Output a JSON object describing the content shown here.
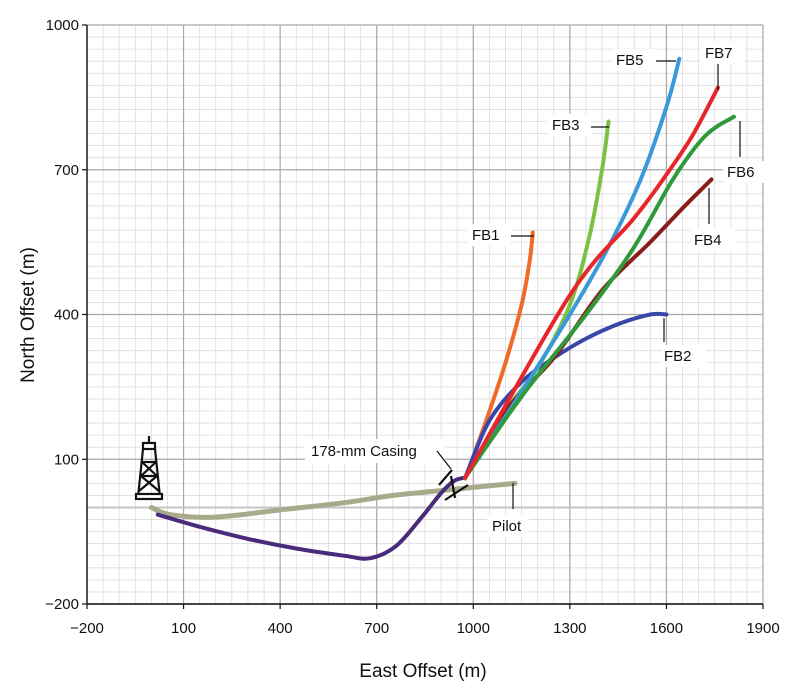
{
  "chart_data": {
    "type": "line",
    "xlabel": "East Offset (m)",
    "ylabel": "North Offset (m)",
    "xlim": [
      -200,
      1900
    ],
    "ylim": [
      -200,
      1000
    ],
    "x_ticks": [
      "−200",
      "100",
      "400",
      "700",
      "1000",
      "1300",
      "1600",
      "1900"
    ],
    "x_tick_values": [
      -200,
      100,
      400,
      700,
      1000,
      1300,
      1600,
      1900
    ],
    "y_ticks": [
      "1000",
      "700",
      "400",
      "100",
      "−200"
    ],
    "y_tick_values": [
      1000,
      700,
      400,
      100,
      -200
    ],
    "grid": true,
    "series": [
      {
        "name": "Pilot",
        "color": "#a9a98c",
        "x": [
          0,
          60,
          200,
          400,
          600,
          750,
          900,
          1050,
          1130
        ],
        "y": [
          0,
          -15,
          -20,
          -5,
          10,
          25,
          35,
          45,
          50
        ]
      },
      {
        "name": "",
        "color": "#4a2a7a",
        "x": [
          20,
          150,
          300,
          450,
          600,
          680,
          760,
          840,
          900,
          940,
          975
        ],
        "y": [
          -15,
          -40,
          -65,
          -85,
          -100,
          -105,
          -80,
          -20,
          30,
          55,
          62
        ]
      },
      {
        "name": "FB1",
        "color": "#f06a28",
        "x": [
          975,
          1040,
          1100,
          1150,
          1175,
          1185
        ],
        "y": [
          60,
          180,
          300,
          420,
          510,
          570
        ]
      },
      {
        "name": "FB2",
        "color": "#3a47a8",
        "x": [
          975,
          1050,
          1150,
          1250,
          1350,
          1450,
          1550,
          1600
        ],
        "y": [
          62,
          180,
          260,
          310,
          350,
          380,
          400,
          400
        ]
      },
      {
        "name": "FB3",
        "color": "#7cc242",
        "x": [
          975,
          1100,
          1200,
          1300,
          1360,
          1400,
          1420
        ],
        "y": [
          62,
          200,
          290,
          420,
          560,
          700,
          800
        ]
      },
      {
        "name": "FB4",
        "color": "#8b1c1c",
        "x": [
          975,
          1100,
          1250,
          1400,
          1550,
          1650,
          1740
        ],
        "y": [
          62,
          200,
          310,
          450,
          550,
          620,
          680
        ]
      },
      {
        "name": "FB5",
        "color": "#3a9ad9",
        "x": [
          975,
          1150,
          1300,
          1420,
          1520,
          1600,
          1640
        ],
        "y": [
          62,
          240,
          400,
          540,
          680,
          830,
          930
        ]
      },
      {
        "name": "FB6",
        "color": "#2f9a3a",
        "x": [
          975,
          1150,
          1350,
          1500,
          1620,
          1720,
          1810
        ],
        "y": [
          62,
          230,
          400,
          540,
          680,
          770,
          810
        ]
      },
      {
        "name": "FB7",
        "color": "#e8262a",
        "x": [
          975,
          1300,
          1500,
          1600,
          1680,
          1760
        ],
        "y": [
          62,
          440,
          600,
          690,
          770,
          870
        ]
      }
    ],
    "annotations": {
      "fb1": "FB1",
      "fb2": "FB2",
      "fb3": "FB3",
      "fb4": "FB4",
      "fb5": "FB5",
      "fb6": "FB6",
      "fb7": "FB7",
      "pilot": "Pilot",
      "casing": "178-mm Casing"
    }
  }
}
